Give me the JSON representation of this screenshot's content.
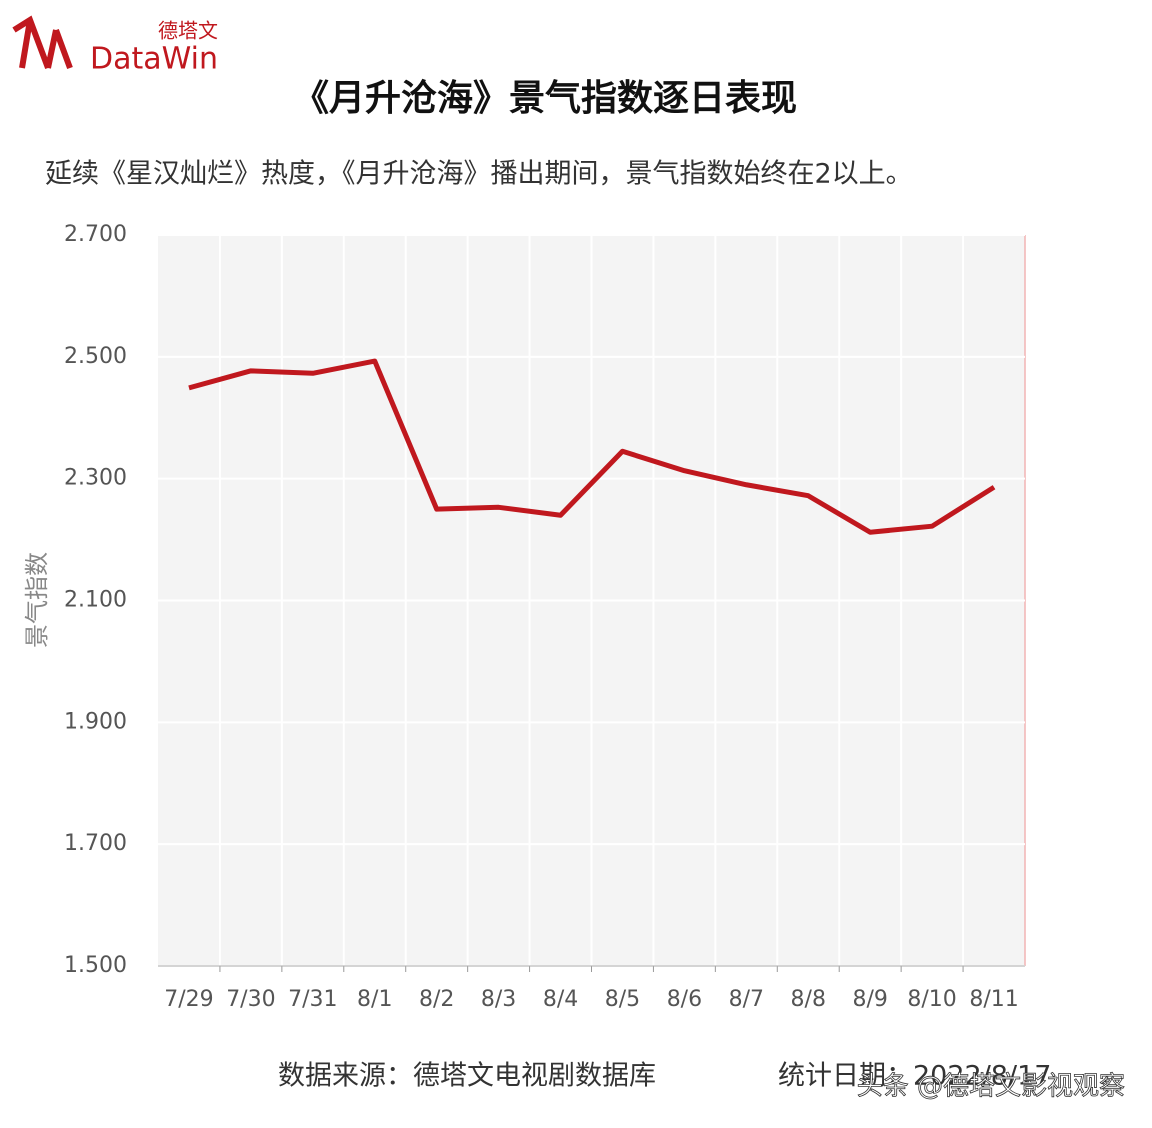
{
  "logo": {
    "cn": "德塔文",
    "en": "DataWin"
  },
  "chart_data": {
    "type": "line",
    "title": "《月升沧海》景气指数逐日表现",
    "subtitle": "延续《星汉灿烂》热度，《月升沧海》播出期间，景气指数始终在2以上。",
    "y_label": "景气指数",
    "categories": [
      "7/29",
      "7/30",
      "7/31",
      "8/1",
      "8/2",
      "8/3",
      "8/4",
      "8/5",
      "8/6",
      "8/7",
      "8/8",
      "8/9",
      "8/10",
      "8/11"
    ],
    "series": [
      {
        "name": "景气指数",
        "color": "#c0181e",
        "values": [
          2.449,
          2.477,
          2.473,
          2.493,
          2.25,
          2.253,
          2.24,
          2.345,
          2.313,
          2.29,
          2.272,
          2.212,
          2.222,
          2.286
        ]
      }
    ],
    "ylim": [
      1.5,
      2.7
    ],
    "yticks": [
      {
        "value": 1.5,
        "label": "1.500"
      },
      {
        "value": 1.7,
        "label": "1.700"
      },
      {
        "value": 1.9,
        "label": "1.900"
      },
      {
        "value": 2.1,
        "label": "2.100"
      },
      {
        "value": 2.3,
        "label": "2.300"
      },
      {
        "value": 2.5,
        "label": "2.500"
      },
      {
        "value": 2.7,
        "label": "2.700"
      }
    ],
    "grid": true
  },
  "footer": {
    "source": "数据来源：德塔文电视剧数据库",
    "date": "统计日期：2022/8/17"
  },
  "watermark": "头条 @德塔文影视观察"
}
